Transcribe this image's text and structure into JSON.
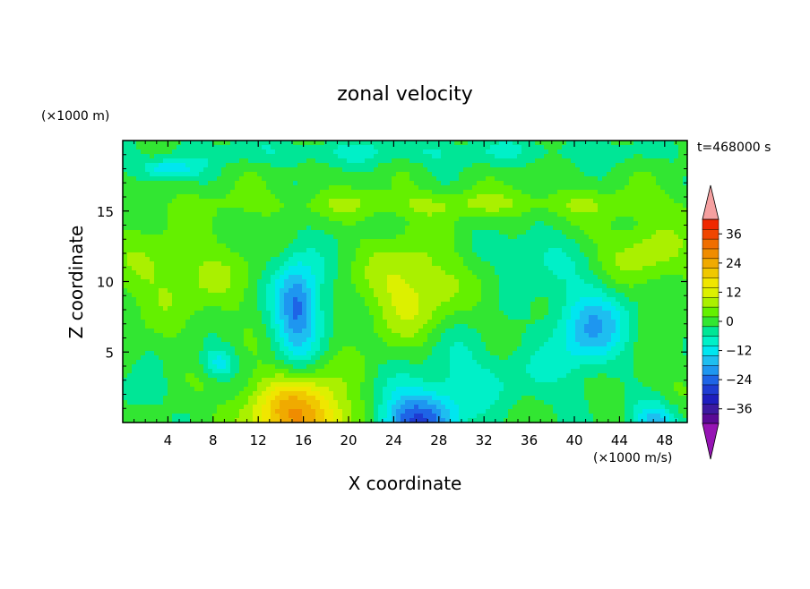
{
  "chart_data": {
    "type": "heatmap",
    "title": "zonal velocity",
    "xlabel": "X coordinate",
    "ylabel": "Z coordinate",
    "y_unit_label": "(×1000 m)",
    "x_unit_label": "(×1000 m/s)",
    "time_label": "t=468000 s",
    "xlim": [
      0,
      50
    ],
    "ylim": [
      0,
      20
    ],
    "x_ticks": [
      4,
      8,
      12,
      16,
      20,
      24,
      28,
      32,
      36,
      40,
      44,
      48
    ],
    "y_ticks": [
      5,
      10,
      15
    ],
    "colorbar": {
      "min": -42,
      "max": 42,
      "step": 4,
      "tick_values": [
        36,
        24,
        12,
        0,
        -12,
        -24,
        -36
      ],
      "tick_labels": [
        "36",
        "24",
        "12",
        "0",
        "−12",
        "−24",
        "−36"
      ],
      "colors": [
        "#5a0a96",
        "#3c1aa0",
        "#1e1ebe",
        "#1e3cd2",
        "#1e64e6",
        "#1e96f0",
        "#1ebef0",
        "#00e6f0",
        "#00f0c8",
        "#00e696",
        "#32e632",
        "#64f000",
        "#aaf000",
        "#dcf000",
        "#f0e600",
        "#f0c800",
        "#f0aa00",
        "#f08c00",
        "#f06e00",
        "#f04600",
        "#f02800"
      ],
      "extend_low_color": "#9614b4",
      "extend_high_color": "#f5a0a0"
    },
    "field": {
      "background": 0,
      "features": [
        {
          "x": 16,
          "y": 0,
          "sx": 4.5,
          "sy": 3.0,
          "amp": 22
        },
        {
          "x": 14.5,
          "y": 1.5,
          "sx": 4.0,
          "sy": 2.2,
          "amp": 6
        },
        {
          "x": 26,
          "y": 0,
          "sx": 3.6,
          "sy": 2.4,
          "amp": -26
        },
        {
          "x": 47,
          "y": 0,
          "sx": 2.2,
          "sy": 1.6,
          "amp": -16
        },
        {
          "x": 41.5,
          "y": 6.8,
          "sx": 3.4,
          "sy": 3.0,
          "amp": -17
        },
        {
          "x": 15.5,
          "y": 8.2,
          "sx": 2.4,
          "sy": 4.0,
          "amp": -18
        },
        {
          "x": 15.5,
          "y": 8.2,
          "sx": 1.4,
          "sy": 2.2,
          "amp": -6
        },
        {
          "x": 8.5,
          "y": 4.2,
          "sx": 1.5,
          "sy": 1.1,
          "amp": -12
        },
        {
          "x": 4.0,
          "y": 18.0,
          "sx": 2.5,
          "sy": 0.7,
          "amp": -14
        },
        {
          "x": 1.5,
          "y": 2.0,
          "sx": 2.0,
          "sy": 1.5,
          "amp": -6
        },
        {
          "x": 36.5,
          "y": 11.8,
          "sx": 3.5,
          "sy": 2.0,
          "amp": -7
        },
        {
          "x": 35,
          "y": 3.0,
          "sx": 8.0,
          "sy": 2.5,
          "amp": -5
        },
        {
          "x": 25.5,
          "y": 9.5,
          "sx": 4.0,
          "sy": 3.3,
          "amp": 12
        },
        {
          "x": 5.0,
          "y": 10.5,
          "sx": 6.0,
          "sy": 3.0,
          "amp": 7
        },
        {
          "x": 46,
          "y": 12.0,
          "sx": 4.0,
          "sy": 2.5,
          "amp": 8
        },
        {
          "x": 30,
          "y": 15.5,
          "sx": 22.0,
          "sy": 1.0,
          "amp": 6
        },
        {
          "x": 25,
          "y": 19.2,
          "sx": 25.0,
          "sy": 1.0,
          "amp": -6
        },
        {
          "x": 30,
          "y": 4.5,
          "sx": 3.0,
          "sy": 3.0,
          "amp": -4
        },
        {
          "x": 44,
          "y": 3.0,
          "sx": 4.0,
          "sy": 2.0,
          "amp": 3
        }
      ]
    }
  }
}
